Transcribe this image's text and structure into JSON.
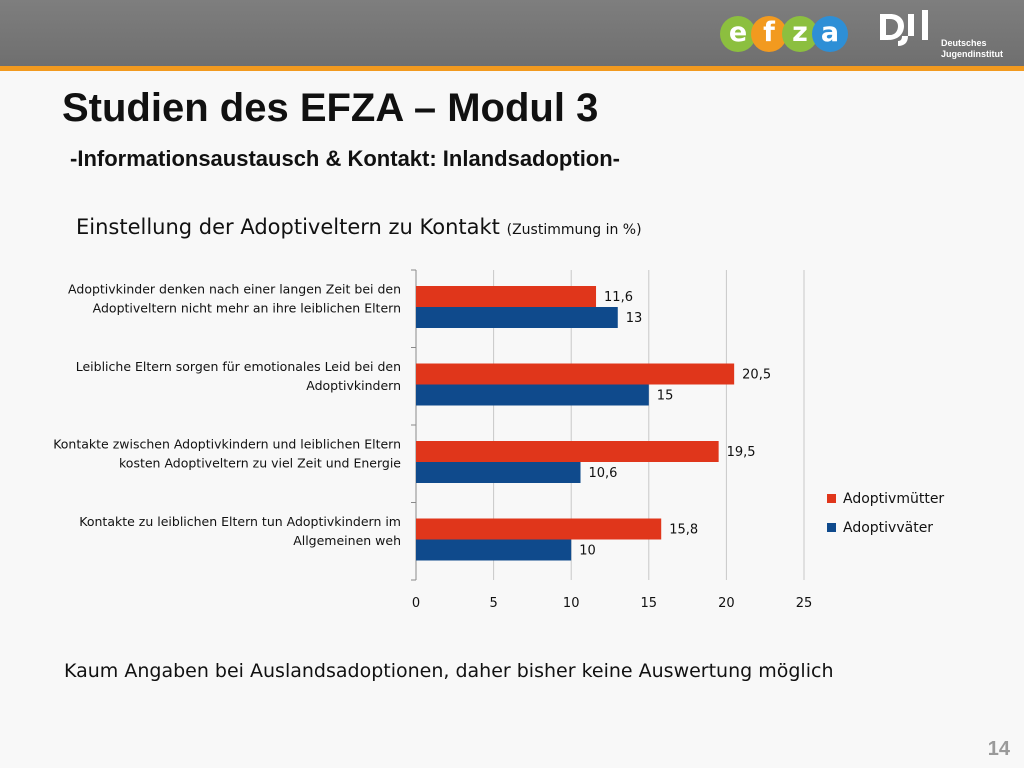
{
  "header": {
    "efza_logo": {
      "letters": [
        "e",
        "f",
        "z",
        "a"
      ],
      "colors": [
        "#8cbf3f",
        "#f29a1f",
        "#8cbf3f",
        "#2e8fd6"
      ]
    },
    "dji_logo": {
      "mark": "DJI",
      "line1": "Deutsches",
      "line2": "Jugendinstitut"
    },
    "bar_color": "#777777",
    "accent_color": "#f29a1f"
  },
  "slide": {
    "title": "Studien des EFZA – Modul 3",
    "subtitle": "-Informationsaustausch & Kontakt: Inlandsadoption-",
    "footer_note": "Kaum Angaben bei Auslandsadoptionen, daher bisher keine Auswertung möglich",
    "page_number": "14"
  },
  "chart_data": {
    "type": "bar",
    "orientation": "horizontal",
    "title": "Einstellung der Adoptiveltern zu Kontakt",
    "title_suffix": "(Zustimmung in %)",
    "categories": [
      [
        "Adoptivkinder denken nach einer langen Zeit bei den",
        "Adoptiveltern nicht mehr an ihre leiblichen Eltern"
      ],
      [
        "Leibliche Eltern sorgen für emotionales Leid bei den",
        "Adoptivkindern"
      ],
      [
        "Kontakte zwischen Adoptivkindern und leiblichen Eltern",
        "kosten Adoptiveltern zu viel Zeit und Energie"
      ],
      [
        "Kontakte zu leiblichen Eltern tun Adoptivkindern im",
        "Allgemeinen weh"
      ]
    ],
    "series": [
      {
        "name": "Adoptivmütter",
        "color": "#e0361b",
        "values": [
          11.6,
          20.5,
          19.5,
          15.8
        ],
        "labels": [
          "11,6",
          "20,5",
          "19,5",
          "15,8"
        ]
      },
      {
        "name": "Adoptivväter",
        "color": "#0f4a8c",
        "values": [
          13,
          15,
          10.6,
          10
        ],
        "labels": [
          "13",
          "15",
          "10,6",
          "10"
        ]
      }
    ],
    "xlim": [
      0,
      25
    ],
    "xticks": [
      0,
      5,
      10,
      15,
      20,
      25
    ],
    "grid": true,
    "legend": "right"
  }
}
